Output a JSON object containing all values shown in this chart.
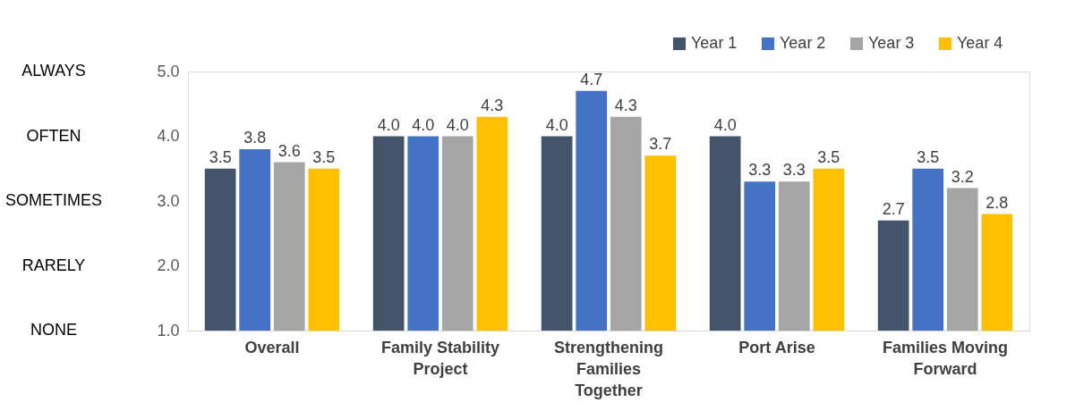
{
  "chart_data": {
    "type": "bar",
    "categories": [
      "Overall",
      "Family Stability Project",
      "Strengthening Families Together",
      "Port Arise",
      "Families Moving Forward"
    ],
    "series": [
      {
        "name": "Year 1",
        "color": "#44546a",
        "values": [
          3.5,
          4.0,
          4.0,
          4.0,
          2.7
        ],
        "value_labels": [
          "3.5",
          "4.0",
          "4.0",
          "4.0",
          "2.7"
        ]
      },
      {
        "name": "Year 2",
        "color": "#4472c4",
        "values": [
          3.8,
          4.0,
          4.7,
          3.3,
          3.5
        ],
        "value_labels": [
          "3.8",
          "4.0",
          "4.7",
          "3.3",
          "3.5"
        ]
      },
      {
        "name": "Year 3",
        "color": "#a5a5a5",
        "values": [
          3.6,
          4.0,
          4.3,
          3.3,
          3.2
        ],
        "value_labels": [
          "3.6",
          "4.0",
          "4.3",
          "3.3",
          "3.2"
        ]
      },
      {
        "name": "Year 4",
        "color": "#ffc000",
        "values": [
          3.5,
          4.3,
          3.7,
          3.5,
          2.8
        ],
        "value_labels": [
          "3.5",
          "4.3",
          "3.7",
          "3.5",
          "2.8"
        ]
      }
    ],
    "ylim": [
      1,
      5
    ],
    "yticks": [
      {
        "value": 1,
        "label": "1.0"
      },
      {
        "value": 2,
        "label": "2.0"
      },
      {
        "value": 3,
        "label": "3.0"
      },
      {
        "value": 4,
        "label": "4.0"
      },
      {
        "value": 5,
        "label": "5.0"
      }
    ],
    "annotations": [
      "NONE",
      "RARELY",
      "SOMETIMES",
      "OFTEN",
      "ALWAYS"
    ],
    "grid": false,
    "legend": "top right"
  }
}
